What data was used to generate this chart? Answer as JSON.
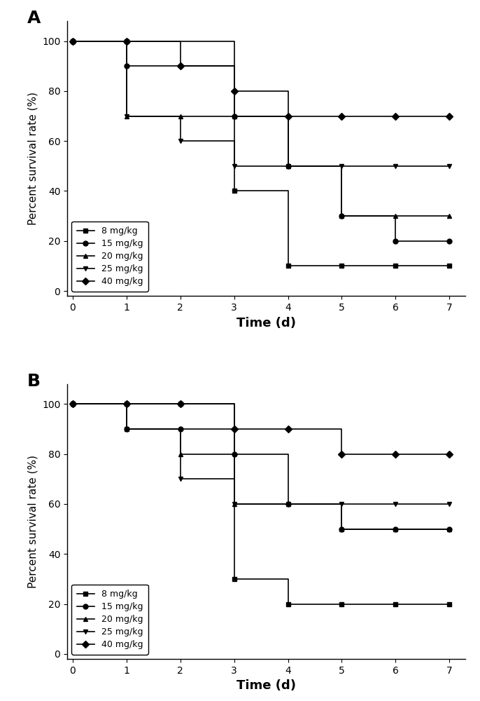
{
  "panel_A": {
    "title": "A",
    "series": [
      {
        "label": "8 mg/kg",
        "marker": "s",
        "x": [
          0,
          1,
          3,
          4,
          5,
          6,
          7
        ],
        "y": [
          100,
          100,
          40,
          10,
          10,
          10,
          10
        ]
      },
      {
        "label": "15 mg/kg",
        "marker": "o",
        "x": [
          0,
          1,
          2,
          3,
          4,
          5,
          6,
          7
        ],
        "y": [
          100,
          90,
          90,
          70,
          50,
          30,
          20,
          20
        ]
      },
      {
        "label": "20 mg/kg",
        "marker": "^",
        "x": [
          0,
          1,
          2,
          3,
          4,
          5,
          6,
          7
        ],
        "y": [
          100,
          70,
          70,
          70,
          50,
          30,
          30,
          30
        ]
      },
      {
        "label": "25 mg/kg",
        "marker": "v",
        "x": [
          0,
          1,
          2,
          3,
          4,
          5,
          6,
          7
        ],
        "y": [
          100,
          70,
          60,
          50,
          50,
          50,
          50,
          50
        ]
      },
      {
        "label": "40 mg/kg",
        "marker": "D",
        "x": [
          0,
          1,
          2,
          3,
          4,
          5,
          6,
          7
        ],
        "y": [
          100,
          100,
          90,
          80,
          70,
          70,
          70,
          70
        ]
      }
    ],
    "xlabel": "Time (d)",
    "ylabel": "Percent survival rate (%)",
    "xlim": [
      -0.1,
      7.3
    ],
    "ylim": [
      -2,
      108
    ],
    "xticks": [
      0,
      1,
      2,
      3,
      4,
      5,
      6,
      7
    ],
    "yticks": [
      0,
      20,
      40,
      60,
      80,
      100
    ]
  },
  "panel_B": {
    "title": "B",
    "series": [
      {
        "label": "8 mg/kg",
        "marker": "s",
        "x": [
          0,
          1,
          2,
          3,
          4,
          5,
          6,
          7
        ],
        "y": [
          100,
          100,
          100,
          30,
          20,
          20,
          20,
          20
        ]
      },
      {
        "label": "15 mg/kg",
        "marker": "o",
        "x": [
          0,
          1,
          2,
          3,
          4,
          5,
          6,
          7
        ],
        "y": [
          100,
          90,
          90,
          80,
          60,
          50,
          50,
          50
        ]
      },
      {
        "label": "20 mg/kg",
        "marker": "^",
        "x": [
          0,
          1,
          2,
          3,
          4,
          5,
          6,
          7
        ],
        "y": [
          100,
          90,
          80,
          60,
          60,
          50,
          50,
          50
        ]
      },
      {
        "label": "25 mg/kg",
        "marker": "v",
        "x": [
          0,
          1,
          2,
          3,
          4,
          5,
          6,
          7
        ],
        "y": [
          100,
          90,
          70,
          60,
          60,
          60,
          60,
          60
        ]
      },
      {
        "label": "40 mg/kg",
        "marker": "D",
        "x": [
          0,
          1,
          2,
          3,
          4,
          5,
          6,
          7
        ],
        "y": [
          100,
          100,
          100,
          90,
          90,
          80,
          80,
          80
        ]
      }
    ],
    "xlabel": "Time (d)",
    "ylabel": "Percent survival rate (%)",
    "xlim": [
      -0.1,
      7.3
    ],
    "ylim": [
      -2,
      108
    ],
    "xticks": [
      0,
      1,
      2,
      3,
      4,
      5,
      6,
      7
    ],
    "yticks": [
      0,
      20,
      40,
      60,
      80,
      100
    ]
  },
  "line_color": "#000000",
  "marker_size": 5,
  "line_width": 1.2,
  "legend_fontsize": 9,
  "axis_label_fontsize": 11,
  "xlabel_fontsize": 13,
  "tick_fontsize": 10,
  "panel_label_fontsize": 18,
  "figure_width": 6.86,
  "figure_height": 10.0,
  "dpi": 100
}
